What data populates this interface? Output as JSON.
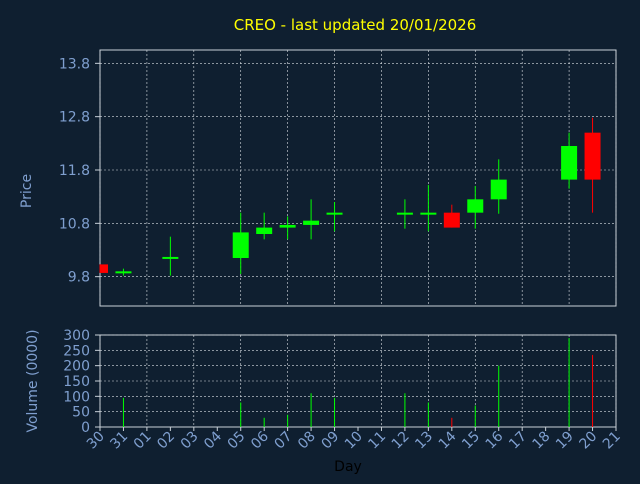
{
  "chart_data": {
    "type": "candlestick",
    "title": "CREO - last updated 20/01/2026",
    "ylabel_price": "Price",
    "ylabel_volume": "Volume (0000)",
    "xlabel": "Day",
    "grid": true,
    "price_ylim": [
      9.25,
      14.05
    ],
    "price_ticks": [
      "9.8",
      "10.8",
      "11.8",
      "12.8",
      "13.8"
    ],
    "volume_ylim": [
      0,
      300
    ],
    "volume_ticks": [
      "0",
      "50",
      "100",
      "150",
      "200",
      "250",
      "300"
    ],
    "x_tick_labels": [
      "30",
      "31",
      "01",
      "02",
      "03",
      "04",
      "05",
      "06",
      "07",
      "08",
      "09",
      "10",
      "11",
      "12",
      "13",
      "14",
      "15",
      "16",
      "17",
      "18",
      "19",
      "20",
      "21"
    ],
    "candles": [
      {
        "day": "30",
        "open": 10.03,
        "high": 10.03,
        "low": 9.87,
        "close": 9.87,
        "volume": 0
      },
      {
        "day": "31",
        "open": 9.88,
        "high": 9.95,
        "low": 9.82,
        "close": 9.9,
        "volume": 95
      },
      {
        "day": "02",
        "open": 10.15,
        "high": 10.55,
        "low": 9.82,
        "close": 10.17,
        "volume": 0
      },
      {
        "day": "05",
        "open": 10.15,
        "high": 11.0,
        "low": 9.85,
        "close": 10.63,
        "volume": 80
      },
      {
        "day": "06",
        "open": 10.6,
        "high": 11.0,
        "low": 10.5,
        "close": 10.72,
        "volume": 30
      },
      {
        "day": "07",
        "open": 10.72,
        "high": 10.93,
        "low": 10.5,
        "close": 10.77,
        "volume": 40
      },
      {
        "day": "08",
        "open": 10.77,
        "high": 11.25,
        "low": 10.5,
        "close": 10.85,
        "volume": 110
      },
      {
        "day": "09",
        "open": 10.97,
        "high": 11.2,
        "low": 10.65,
        "close": 11.0,
        "volume": 95
      },
      {
        "day": "12",
        "open": 10.97,
        "high": 11.25,
        "low": 10.7,
        "close": 11.0,
        "volume": 110
      },
      {
        "day": "13",
        "open": 10.97,
        "high": 11.52,
        "low": 10.65,
        "close": 11.0,
        "volume": 80
      },
      {
        "day": "14",
        "open": 11.0,
        "high": 11.15,
        "low": 10.72,
        "close": 10.72,
        "volume": 30
      },
      {
        "day": "15",
        "open": 11.0,
        "high": 11.5,
        "low": 10.7,
        "close": 11.25,
        "volume": 70
      },
      {
        "day": "16",
        "open": 11.25,
        "high": 12.0,
        "low": 10.98,
        "close": 11.62,
        "volume": 200
      },
      {
        "day": "19",
        "open": 11.62,
        "high": 12.5,
        "low": 11.45,
        "close": 12.25,
        "volume": 290
      },
      {
        "day": "20",
        "open": 12.5,
        "high": 12.78,
        "low": 11.0,
        "close": 11.62,
        "volume": 235
      }
    ],
    "colors": {
      "background": "#0f1f30",
      "axes": "#c8d0d8",
      "grid": "#d8dde2",
      "title": "#ffff00",
      "label": "#7f9fcf",
      "up": "#00ff00",
      "down": "#ff0000"
    }
  }
}
